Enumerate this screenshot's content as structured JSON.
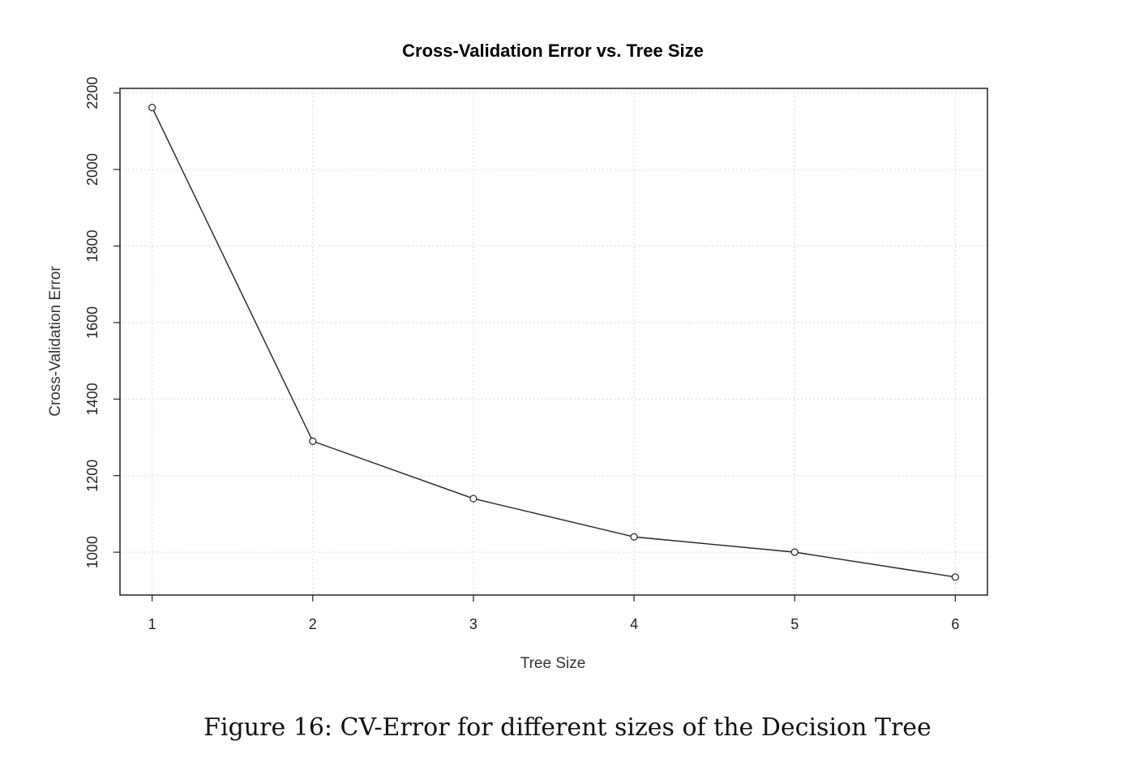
{
  "caption": "Figure 16: CV-Error for different sizes of the Decision Tree",
  "chart_data": {
    "type": "line",
    "title": "Cross-Validation Error vs. Tree Size",
    "xlabel": "Tree Size",
    "ylabel": "Cross-Validation Error",
    "x": [
      1,
      2,
      3,
      4,
      5,
      6
    ],
    "series": [
      {
        "values": [
          2162,
          1290,
          1140,
          1040,
          1000,
          935
        ]
      }
    ],
    "xticks": [
      "1",
      "2",
      "3",
      "4",
      "5",
      "6"
    ],
    "yticks": [
      "1000",
      "1200",
      "1400",
      "1600",
      "1800",
      "2000",
      "2200"
    ],
    "xlim": [
      0.8,
      6.2
    ],
    "ylim": [
      888,
      2212
    ],
    "grid": true,
    "marker": "open-circle",
    "line_color": "#222222",
    "grid_color": "#d9d9d9"
  }
}
